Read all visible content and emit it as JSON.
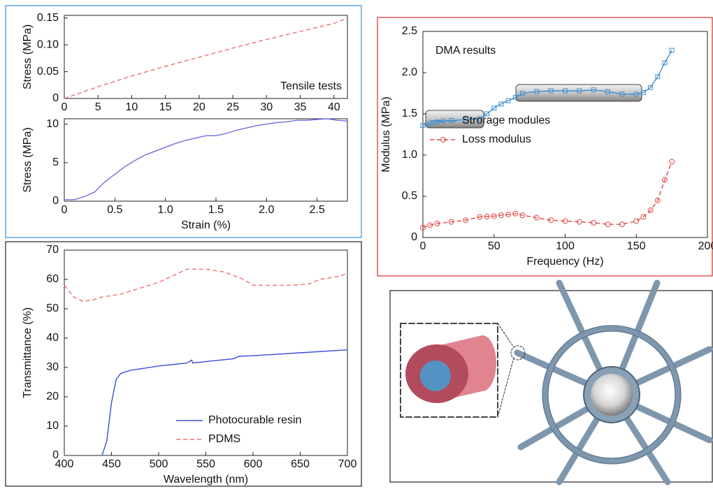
{
  "chart_data": [
    {
      "type": "line",
      "ylabel": "Stress (MPa)",
      "annotation": "Tensile tests",
      "xlim": [
        0,
        42
      ],
      "xticks": [
        0,
        5,
        10,
        15,
        20,
        25,
        30,
        35,
        40
      ],
      "ylim": [
        0,
        0.155
      ],
      "yticks": [
        0,
        0.05,
        {
          "value": 0.1,
          "label": "0.10"
        },
        0.15
      ],
      "x": [
        0,
        5,
        10,
        15,
        20,
        25,
        30,
        35,
        40,
        42
      ],
      "series": [
        {
          "color": "#e8716f",
          "line_style": "dashed",
          "values": [
            0,
            0.022,
            0.042,
            0.06,
            0.077,
            0.094,
            0.11,
            0.125,
            0.14,
            0.15
          ]
        }
      ]
    },
    {
      "type": "line",
      "xlabel": "Strain (%)",
      "ylabel": "Stress (MPa)",
      "xlim": [
        0,
        2.8
      ],
      "xticks": [
        0,
        0.5,
        {
          "value": 1,
          "label": "1.0"
        },
        1.5,
        {
          "value": 2,
          "label": "2.0"
        },
        2.5
      ],
      "ylim": [
        0,
        10.7
      ],
      "yticks": [
        0,
        5,
        10
      ],
      "x": [
        0,
        0.1,
        0.2,
        0.3,
        0.4,
        0.5,
        0.6,
        0.7,
        0.8,
        0.9,
        1.0,
        1.1,
        1.2,
        1.3,
        1.4,
        1.5,
        1.6,
        1.7,
        1.8,
        1.9,
        2.0,
        2.1,
        2.2,
        2.3,
        2.4,
        2.5,
        2.6,
        2.7,
        2.8
      ],
      "series": [
        {
          "color": "#6f6fe0",
          "line_style": "solid",
          "values": [
            0.2,
            0.2,
            0.6,
            1.2,
            2.5,
            3.5,
            4.5,
            5.3,
            6.0,
            6.5,
            7.0,
            7.5,
            7.9,
            8.2,
            8.5,
            8.5,
            8.8,
            9.2,
            9.5,
            9.8,
            10.0,
            10.2,
            10.3,
            10.5,
            10.5,
            10.6,
            10.7,
            10.5,
            10.4
          ]
        }
      ]
    },
    {
      "type": "line",
      "xlabel": "Wavelength (nm)",
      "ylabel": "Transmittance (%)",
      "legend": "lower right",
      "xlim": [
        400,
        700
      ],
      "xticks": [
        400,
        450,
        500,
        550,
        600,
        650,
        700
      ],
      "ylim": [
        0,
        70
      ],
      "yticks": [
        0,
        10,
        20,
        30,
        40,
        50,
        60,
        70
      ],
      "series": [
        {
          "name": "Photocurable resin",
          "color": "#3b4fd8",
          "line_style": "solid",
          "x": [
            440,
            445,
            450,
            455,
            460,
            470,
            500,
            530,
            535,
            536,
            550,
            580,
            585,
            600,
            650,
            700
          ],
          "values": [
            0,
            5,
            18,
            26,
            28,
            29,
            30.5,
            31.5,
            32.5,
            31.5,
            32,
            33,
            33.8,
            34,
            35,
            36
          ]
        },
        {
          "name": "PDMS",
          "color": "#f07070",
          "line_style": "dashed",
          "x": [
            400,
            410,
            420,
            430,
            440,
            460,
            480,
            500,
            520,
            530,
            550,
            570,
            590,
            600,
            620,
            640,
            660,
            670,
            690,
            700
          ],
          "values": [
            58,
            54,
            52.5,
            53,
            54,
            55,
            57,
            59,
            62,
            63.5,
            63.5,
            62.5,
            60,
            58,
            58,
            58,
            58.5,
            60,
            61,
            62
          ]
        }
      ]
    },
    {
      "type": "line",
      "xlabel": "Frequency (Hz)",
      "ylabel": "Modulus (MPa)",
      "annotation": "DMA results",
      "legend": "center left",
      "xlim": [
        0,
        200
      ],
      "xticks": [
        0,
        50,
        100,
        150,
        200
      ],
      "ylim": [
        0,
        2.5
      ],
      "yticks": [
        0,
        0.5,
        {
          "value": 1,
          "label": "1.0"
        },
        1.5,
        {
          "value": 2,
          "label": "2.0"
        },
        2.5
      ],
      "x": [
        0,
        5,
        10,
        20,
        30,
        40,
        45,
        50,
        55,
        60,
        65,
        70,
        80,
        90,
        100,
        110,
        120,
        130,
        140,
        150,
        155,
        160,
        165,
        170,
        175
      ],
      "series": [
        {
          "name": "Strorage modules",
          "color": "#3f8fd0",
          "marker": "square",
          "line_style": "solid",
          "values": [
            1.36,
            1.38,
            1.4,
            1.42,
            1.43,
            1.44,
            1.5,
            1.57,
            1.62,
            1.66,
            1.7,
            1.75,
            1.77,
            1.78,
            1.78,
            1.78,
            1.79,
            1.77,
            1.74,
            1.74,
            1.76,
            1.82,
            1.95,
            2.12,
            2.27
          ]
        },
        {
          "name": "Loss modulus",
          "color": "#e04848",
          "marker": "circle",
          "line_style": "dashed",
          "values": [
            0.12,
            0.15,
            0.17,
            0.19,
            0.21,
            0.25,
            0.255,
            0.26,
            0.27,
            0.28,
            0.29,
            0.27,
            0.24,
            0.21,
            0.2,
            0.19,
            0.18,
            0.16,
            0.16,
            0.2,
            0.25,
            0.33,
            0.45,
            0.7,
            0.92
          ]
        }
      ]
    }
  ]
}
